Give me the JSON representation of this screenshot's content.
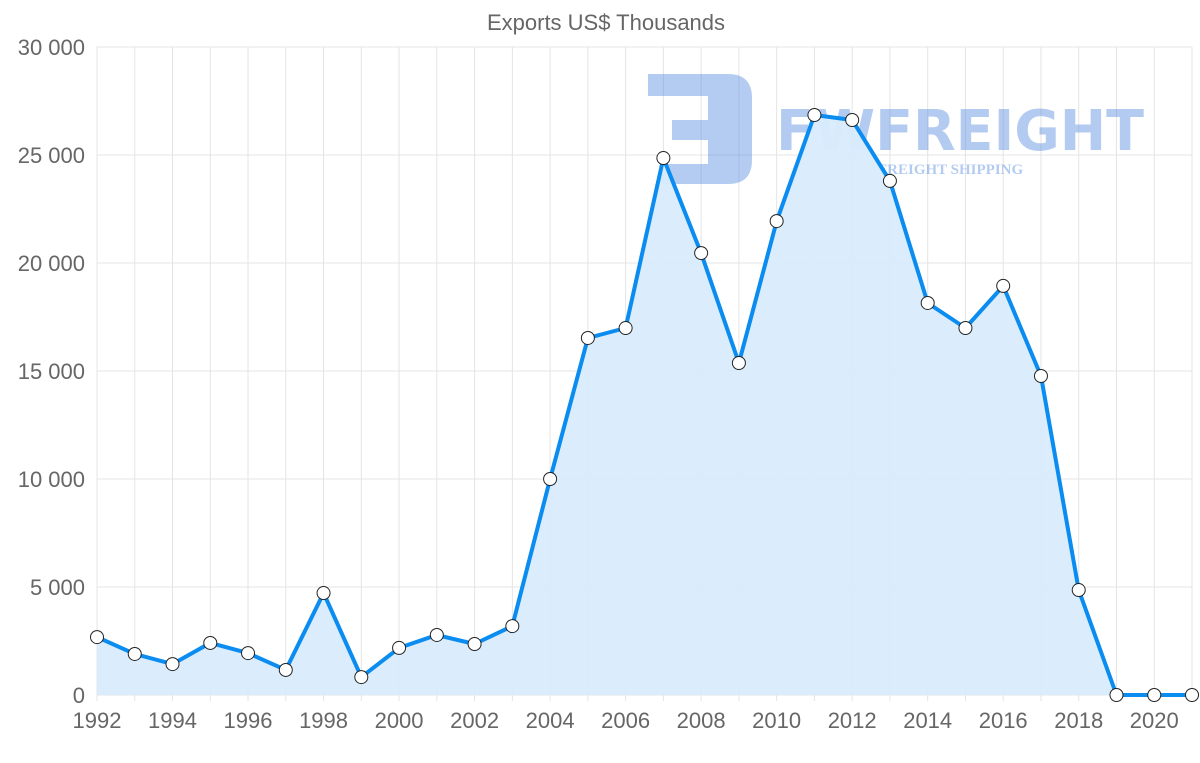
{
  "watermark": {
    "brand": "FWFREIGHT",
    "tagline": "FREIGHT SHIPPING"
  },
  "chart_data": {
    "type": "area",
    "title": "Exports US$ Thousands",
    "xlabel": "",
    "ylabel": "",
    "ylim": [
      0,
      30000
    ],
    "yticks": [
      0,
      5000,
      10000,
      15000,
      20000,
      25000,
      30000
    ],
    "ytick_labels": [
      "0",
      "5 000",
      "10 000",
      "15 000",
      "20 000",
      "25 000",
      "30 000"
    ],
    "xtick_labels": [
      "1992",
      "1994",
      "1996",
      "1998",
      "2000",
      "2002",
      "2004",
      "2006",
      "2008",
      "2010",
      "2012",
      "2014",
      "2016",
      "2018",
      "2020"
    ],
    "grid": true,
    "line_color": "#0a8cf0",
    "fill_color": "#d9ecfd",
    "x": [
      1992,
      1993,
      1994,
      1995,
      1996,
      1997,
      1998,
      1999,
      2000,
      2001,
      2002,
      2003,
      2004,
      2005,
      2006,
      2007,
      2008,
      2009,
      2010,
      2011,
      2012,
      2013,
      2014,
      2015,
      2016,
      2017,
      2018,
      2019,
      2020,
      2021
    ],
    "series": [
      {
        "name": "Exports US$ Thousands",
        "values": [
          2680,
          1900,
          1430,
          2410,
          1940,
          1160,
          4720,
          830,
          2180,
          2780,
          2360,
          3190,
          10000,
          16530,
          16990,
          24860,
          20460,
          15370,
          21940,
          26850,
          26620,
          23800,
          18150,
          16990,
          18940,
          14770,
          4860,
          0,
          0,
          0
        ]
      }
    ]
  }
}
